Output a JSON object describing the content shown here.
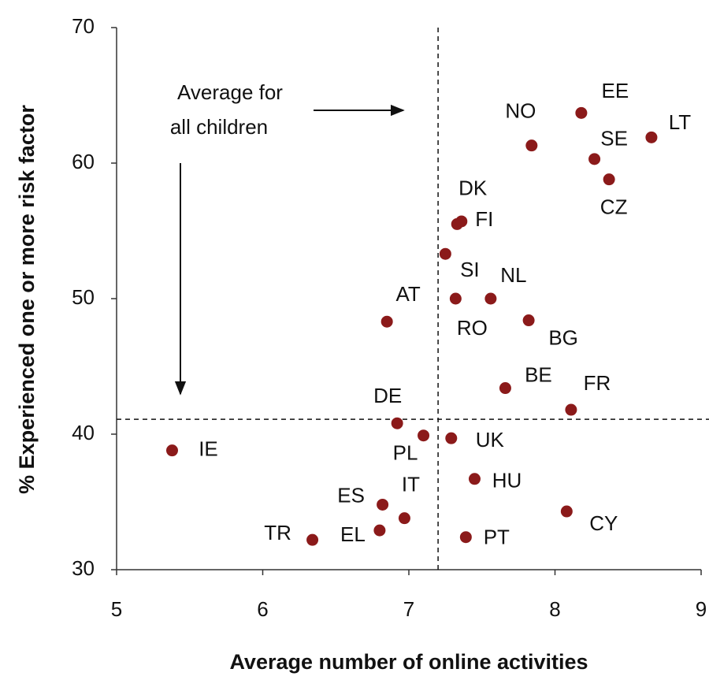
{
  "chart_data": {
    "type": "scatter",
    "xlabel": "Average number of online activities",
    "ylabel": "% Experienced one or more risk factor",
    "labels": [
      "EE",
      "NO",
      "LT",
      "SE",
      "CZ",
      "DK",
      "FI",
      "SI",
      "RO",
      "NL",
      "AT",
      "BG",
      "BE",
      "FR",
      "DE",
      "PL",
      "UK",
      "IE",
      "HU",
      "ES",
      "CY",
      "IT",
      "EL",
      "TR",
      "PT"
    ],
    "x": [
      8.18,
      7.84,
      8.66,
      8.27,
      8.37,
      7.33,
      7.36,
      7.25,
      7.32,
      7.56,
      6.85,
      7.82,
      7.66,
      8.11,
      6.92,
      7.1,
      7.29,
      5.38,
      7.45,
      6.82,
      8.08,
      6.97,
      6.8,
      6.34,
      7.39
    ],
    "values": [
      63.7,
      61.3,
      61.9,
      60.3,
      58.8,
      55.5,
      55.7,
      53.3,
      50.0,
      50.0,
      48.3,
      48.4,
      43.4,
      41.8,
      40.8,
      39.9,
      39.7,
      38.8,
      36.7,
      34.8,
      34.3,
      33.8,
      32.9,
      32.2,
      32.4
    ],
    "color": "#8b1a1a",
    "xlim": [
      5,
      9
    ],
    "xticks": [
      5,
      6,
      7,
      8,
      9
    ],
    "ylim": [
      30,
      70
    ],
    "yticks": [
      30,
      40,
      50,
      60,
      70
    ],
    "reference_lines": {
      "x": 7.2,
      "y": 41.1
    },
    "annotation": [
      "Average for",
      "all children"
    ]
  }
}
